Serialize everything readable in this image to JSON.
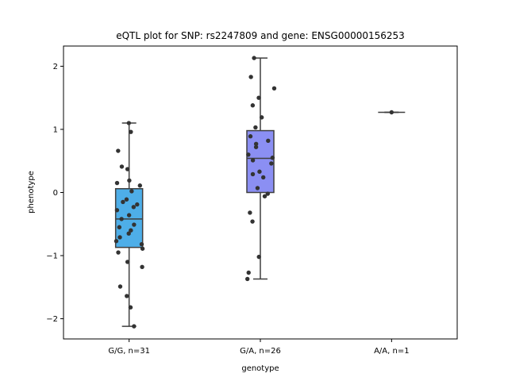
{
  "chart_data": {
    "type": "box",
    "title": "eQTL plot for SNP: rs2247809 and gene: ENSG00000156253",
    "xlabel": "genotype",
    "ylabel": "phenotype",
    "ylim": [
      -2.32,
      2.32
    ],
    "yticks": [
      -2,
      -1,
      0,
      1,
      2
    ],
    "grid": false,
    "categories": [
      "G/G, n=31",
      "G/A, n=26",
      "A/A, n=1"
    ],
    "colors": [
      "#4eaee8",
      "#8b8ff3",
      "#7b5ff0"
    ],
    "point_color": "#333333",
    "boxes": [
      {
        "whisker_low": -2.12,
        "q1": -0.87,
        "median": -0.42,
        "q3": 0.06,
        "whisker_high": 1.1
      },
      {
        "whisker_low": -1.37,
        "q1": 0.0,
        "median": 0.54,
        "q3": 0.98,
        "whisker_high": 2.13
      },
      {
        "whisker_low": 1.27,
        "q1": 1.27,
        "median": 1.27,
        "q3": 1.27,
        "whisker_high": 1.27
      }
    ],
    "points": [
      [
        1.1,
        0.96,
        0.66,
        0.41,
        0.37,
        0.19,
        0.15,
        0.11,
        0.02,
        -0.11,
        -0.15,
        -0.19,
        -0.23,
        -0.28,
        -0.36,
        -0.42,
        -0.51,
        -0.55,
        -0.6,
        -0.65,
        -0.71,
        -0.77,
        -0.82,
        -0.89,
        -0.95,
        -1.1,
        -1.18,
        -1.49,
        -1.64,
        -1.82,
        -2.12
      ],
      [
        2.13,
        1.83,
        1.65,
        1.5,
        1.38,
        1.19,
        1.03,
        0.89,
        0.82,
        0.77,
        0.72,
        0.6,
        0.55,
        0.51,
        0.46,
        0.33,
        0.29,
        0.24,
        0.07,
        -0.02,
        -0.06,
        -0.32,
        -0.46,
        -1.02,
        -1.27,
        -1.37
      ],
      [
        1.27
      ]
    ]
  }
}
